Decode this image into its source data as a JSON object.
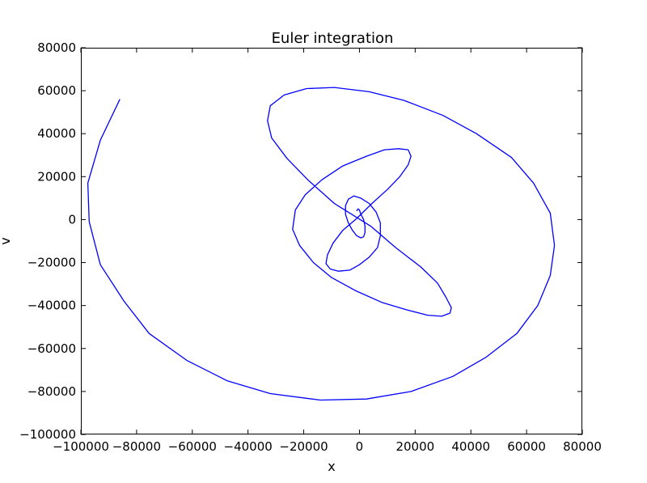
{
  "chart_data": {
    "type": "line",
    "title": "Euler integration",
    "xlabel": "x",
    "ylabel": "v",
    "xlim": [
      -100000,
      80000
    ],
    "ylim": [
      -100000,
      80000
    ],
    "xticks": [
      -100000,
      -80000,
      -60000,
      -40000,
      -20000,
      0,
      20000,
      40000,
      60000,
      80000
    ],
    "yticks": [
      -100000,
      -80000,
      -60000,
      -40000,
      -20000,
      0,
      20000,
      40000,
      60000,
      80000
    ],
    "xtick_labels": [
      "−100000",
      "−80000",
      "−60000",
      "−40000",
      "−20000",
      "0",
      "20000",
      "40000",
      "60000",
      "80000"
    ],
    "ytick_labels": [
      "−100000",
      "−80000",
      "−60000",
      "−40000",
      "−20000",
      "0",
      "20000",
      "40000",
      "60000",
      "80000"
    ],
    "grid": false,
    "series": [
      {
        "color": "#0000ff",
        "x": [
          -86000,
          -93000,
          -97500,
          -97000,
          -93000,
          -84500,
          -75500,
          -62000,
          -47500,
          -32000,
          -14000,
          2500,
          18500,
          33500,
          45500,
          56500,
          64000,
          68500,
          70000,
          68500,
          62500,
          54500,
          42000,
          30000,
          16000,
          3500,
          -9000,
          -19000,
          -27000,
          -32000,
          -33000,
          -31500,
          -26000,
          -18500,
          -9000,
          4000,
          13000,
          22000,
          28000,
          31000,
          33000,
          32500,
          29500,
          24500,
          17000,
          8000,
          -1500,
          -10000,
          -16500,
          -21500,
          -24000,
          -23000,
          -19500,
          -13500,
          -6000,
          2500,
          9000,
          14000,
          17500,
          18500,
          17500,
          14500,
          10000,
          4500,
          -1000,
          -6000,
          -9500,
          -11500,
          -12000,
          -10500,
          -7500,
          -3500,
          0,
          3500,
          6500,
          7500,
          7500,
          6000,
          3500,
          500,
          -2000,
          -4000,
          -5000,
          -5000,
          -4000,
          -2500,
          -1000,
          500,
          1500,
          2000,
          2000,
          1500,
          500,
          0,
          -500,
          -1000
        ],
        "y": [
          56000,
          37000,
          17000,
          -1000,
          -21000,
          -38000,
          -53000,
          -65500,
          -75000,
          -81000,
          -84000,
          -83500,
          -80000,
          -73000,
          -64000,
          -53000,
          -40000,
          -26000,
          -12000,
          3000,
          17000,
          29000,
          40000,
          48500,
          55500,
          59500,
          61500,
          61000,
          58000,
          53000,
          46000,
          38000,
          28500,
          18500,
          7500,
          -3000,
          -13000,
          -22000,
          -29500,
          -36000,
          -41000,
          -43500,
          -45000,
          -44500,
          -42000,
          -38500,
          -33000,
          -27000,
          -20000,
          -12000,
          -4500,
          4500,
          11500,
          18500,
          25000,
          29500,
          32500,
          33000,
          32500,
          29500,
          25500,
          20000,
          14000,
          7500,
          500,
          -5000,
          -11000,
          -16500,
          -20500,
          -23000,
          -24000,
          -23500,
          -21000,
          -17500,
          -13000,
          -7500,
          -1500,
          3500,
          7500,
          10000,
          11000,
          9500,
          6500,
          2500,
          -1500,
          -5000,
          -7500,
          -8500,
          -8000,
          -6000,
          -3000,
          0,
          2500,
          4500,
          5000,
          4000
        ]
      }
    ]
  }
}
